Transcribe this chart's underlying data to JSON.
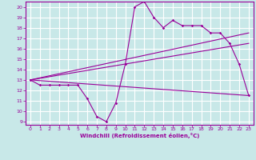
{
  "bg_color": "#c8e8e8",
  "grid_color": "#ffffff",
  "line_color": "#990099",
  "xlabel": "Windchill (Refroidissement éolien,°C)",
  "xlim": [
    -0.5,
    23.5
  ],
  "ylim": [
    8.7,
    20.5
  ],
  "yticks": [
    9,
    10,
    11,
    12,
    13,
    14,
    15,
    16,
    17,
    18,
    19,
    20
  ],
  "xticks": [
    0,
    1,
    2,
    3,
    4,
    5,
    6,
    7,
    8,
    9,
    10,
    11,
    12,
    13,
    14,
    15,
    16,
    17,
    18,
    19,
    20,
    21,
    22,
    23
  ],
  "line1_x": [
    0,
    1,
    2,
    3,
    4,
    5,
    6,
    7,
    8,
    9,
    10,
    11,
    12,
    13,
    14,
    15,
    16,
    17,
    18,
    19,
    20,
    21,
    22,
    23
  ],
  "line1_y": [
    13,
    12.5,
    12.5,
    12.5,
    12.5,
    12.5,
    11.2,
    9.5,
    9,
    10.8,
    14.5,
    20,
    20.5,
    19,
    18,
    18.7,
    18.2,
    18.2,
    18.2,
    17.5,
    17.5,
    16.5,
    14.5,
    11.5
  ],
  "line2_x": [
    0,
    23
  ],
  "line2_y": [
    13,
    11.5
  ],
  "line3_x": [
    0,
    23
  ],
  "line3_y": [
    13,
    16.5
  ],
  "line4_x": [
    0,
    23
  ],
  "line4_y": [
    13,
    17.5
  ]
}
